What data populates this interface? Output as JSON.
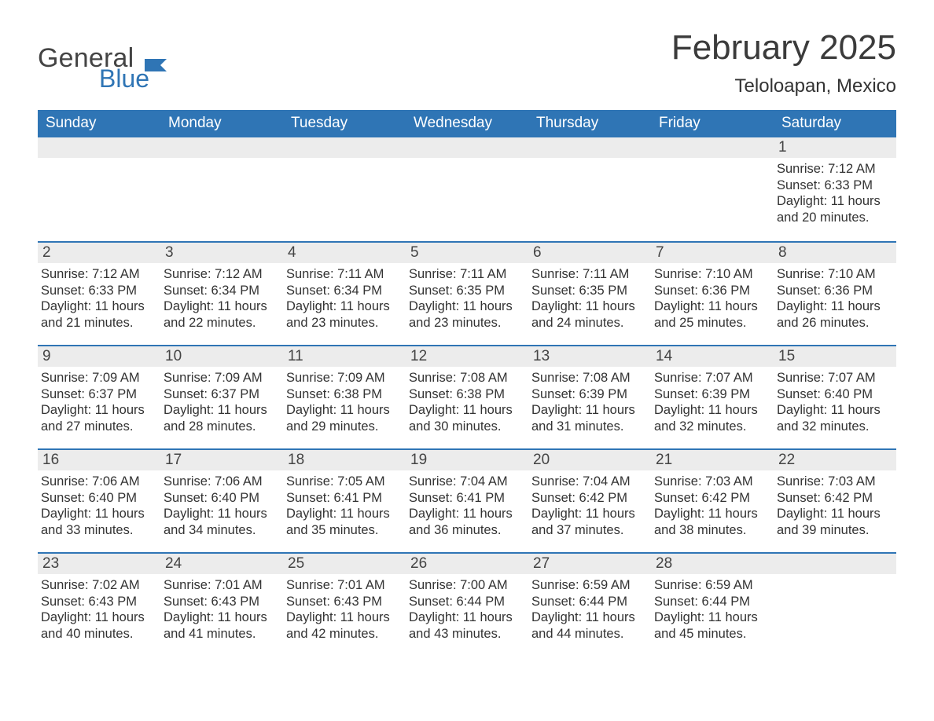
{
  "logo": {
    "word1": "General",
    "word2": "Blue",
    "flag_color": "#2f75b5"
  },
  "title": "February 2025",
  "location": "Teloloapan, Mexico",
  "colors": {
    "header_bg": "#2f75b5",
    "header_text": "#ffffff",
    "daynum_bg": "#ececec",
    "week_divider": "#2f75b5",
    "body_text": "#333333",
    "title_text": "#3b3b3b"
  },
  "typography": {
    "title_fontsize": 44,
    "location_fontsize": 24,
    "dow_fontsize": 19,
    "daynum_fontsize": 19,
    "body_fontsize": 16.5
  },
  "days_of_week": [
    "Sunday",
    "Monday",
    "Tuesday",
    "Wednesday",
    "Thursday",
    "Friday",
    "Saturday"
  ],
  "labels": {
    "sunrise": "Sunrise:",
    "sunset": "Sunset:",
    "daylight": "Daylight:"
  },
  "weeks": [
    [
      {
        "empty": true
      },
      {
        "empty": true
      },
      {
        "empty": true
      },
      {
        "empty": true
      },
      {
        "empty": true
      },
      {
        "empty": true
      },
      {
        "day": 1,
        "sunrise": "7:12 AM",
        "sunset": "6:33 PM",
        "daylight": "11 hours and 20 minutes."
      }
    ],
    [
      {
        "day": 2,
        "sunrise": "7:12 AM",
        "sunset": "6:33 PM",
        "daylight": "11 hours and 21 minutes."
      },
      {
        "day": 3,
        "sunrise": "7:12 AM",
        "sunset": "6:34 PM",
        "daylight": "11 hours and 22 minutes."
      },
      {
        "day": 4,
        "sunrise": "7:11 AM",
        "sunset": "6:34 PM",
        "daylight": "11 hours and 23 minutes."
      },
      {
        "day": 5,
        "sunrise": "7:11 AM",
        "sunset": "6:35 PM",
        "daylight": "11 hours and 23 minutes."
      },
      {
        "day": 6,
        "sunrise": "7:11 AM",
        "sunset": "6:35 PM",
        "daylight": "11 hours and 24 minutes."
      },
      {
        "day": 7,
        "sunrise": "7:10 AM",
        "sunset": "6:36 PM",
        "daylight": "11 hours and 25 minutes."
      },
      {
        "day": 8,
        "sunrise": "7:10 AM",
        "sunset": "6:36 PM",
        "daylight": "11 hours and 26 minutes."
      }
    ],
    [
      {
        "day": 9,
        "sunrise": "7:09 AM",
        "sunset": "6:37 PM",
        "daylight": "11 hours and 27 minutes."
      },
      {
        "day": 10,
        "sunrise": "7:09 AM",
        "sunset": "6:37 PM",
        "daylight": "11 hours and 28 minutes."
      },
      {
        "day": 11,
        "sunrise": "7:09 AM",
        "sunset": "6:38 PM",
        "daylight": "11 hours and 29 minutes."
      },
      {
        "day": 12,
        "sunrise": "7:08 AM",
        "sunset": "6:38 PM",
        "daylight": "11 hours and 30 minutes."
      },
      {
        "day": 13,
        "sunrise": "7:08 AM",
        "sunset": "6:39 PM",
        "daylight": "11 hours and 31 minutes."
      },
      {
        "day": 14,
        "sunrise": "7:07 AM",
        "sunset": "6:39 PM",
        "daylight": "11 hours and 32 minutes."
      },
      {
        "day": 15,
        "sunrise": "7:07 AM",
        "sunset": "6:40 PM",
        "daylight": "11 hours and 32 minutes."
      }
    ],
    [
      {
        "day": 16,
        "sunrise": "7:06 AM",
        "sunset": "6:40 PM",
        "daylight": "11 hours and 33 minutes."
      },
      {
        "day": 17,
        "sunrise": "7:06 AM",
        "sunset": "6:40 PM",
        "daylight": "11 hours and 34 minutes."
      },
      {
        "day": 18,
        "sunrise": "7:05 AM",
        "sunset": "6:41 PM",
        "daylight": "11 hours and 35 minutes."
      },
      {
        "day": 19,
        "sunrise": "7:04 AM",
        "sunset": "6:41 PM",
        "daylight": "11 hours and 36 minutes."
      },
      {
        "day": 20,
        "sunrise": "7:04 AM",
        "sunset": "6:42 PM",
        "daylight": "11 hours and 37 minutes."
      },
      {
        "day": 21,
        "sunrise": "7:03 AM",
        "sunset": "6:42 PM",
        "daylight": "11 hours and 38 minutes."
      },
      {
        "day": 22,
        "sunrise": "7:03 AM",
        "sunset": "6:42 PM",
        "daylight": "11 hours and 39 minutes."
      }
    ],
    [
      {
        "day": 23,
        "sunrise": "7:02 AM",
        "sunset": "6:43 PM",
        "daylight": "11 hours and 40 minutes."
      },
      {
        "day": 24,
        "sunrise": "7:01 AM",
        "sunset": "6:43 PM",
        "daylight": "11 hours and 41 minutes."
      },
      {
        "day": 25,
        "sunrise": "7:01 AM",
        "sunset": "6:43 PM",
        "daylight": "11 hours and 42 minutes."
      },
      {
        "day": 26,
        "sunrise": "7:00 AM",
        "sunset": "6:44 PM",
        "daylight": "11 hours and 43 minutes."
      },
      {
        "day": 27,
        "sunrise": "6:59 AM",
        "sunset": "6:44 PM",
        "daylight": "11 hours and 44 minutes."
      },
      {
        "day": 28,
        "sunrise": "6:59 AM",
        "sunset": "6:44 PM",
        "daylight": "11 hours and 45 minutes."
      },
      {
        "empty": true
      }
    ]
  ]
}
